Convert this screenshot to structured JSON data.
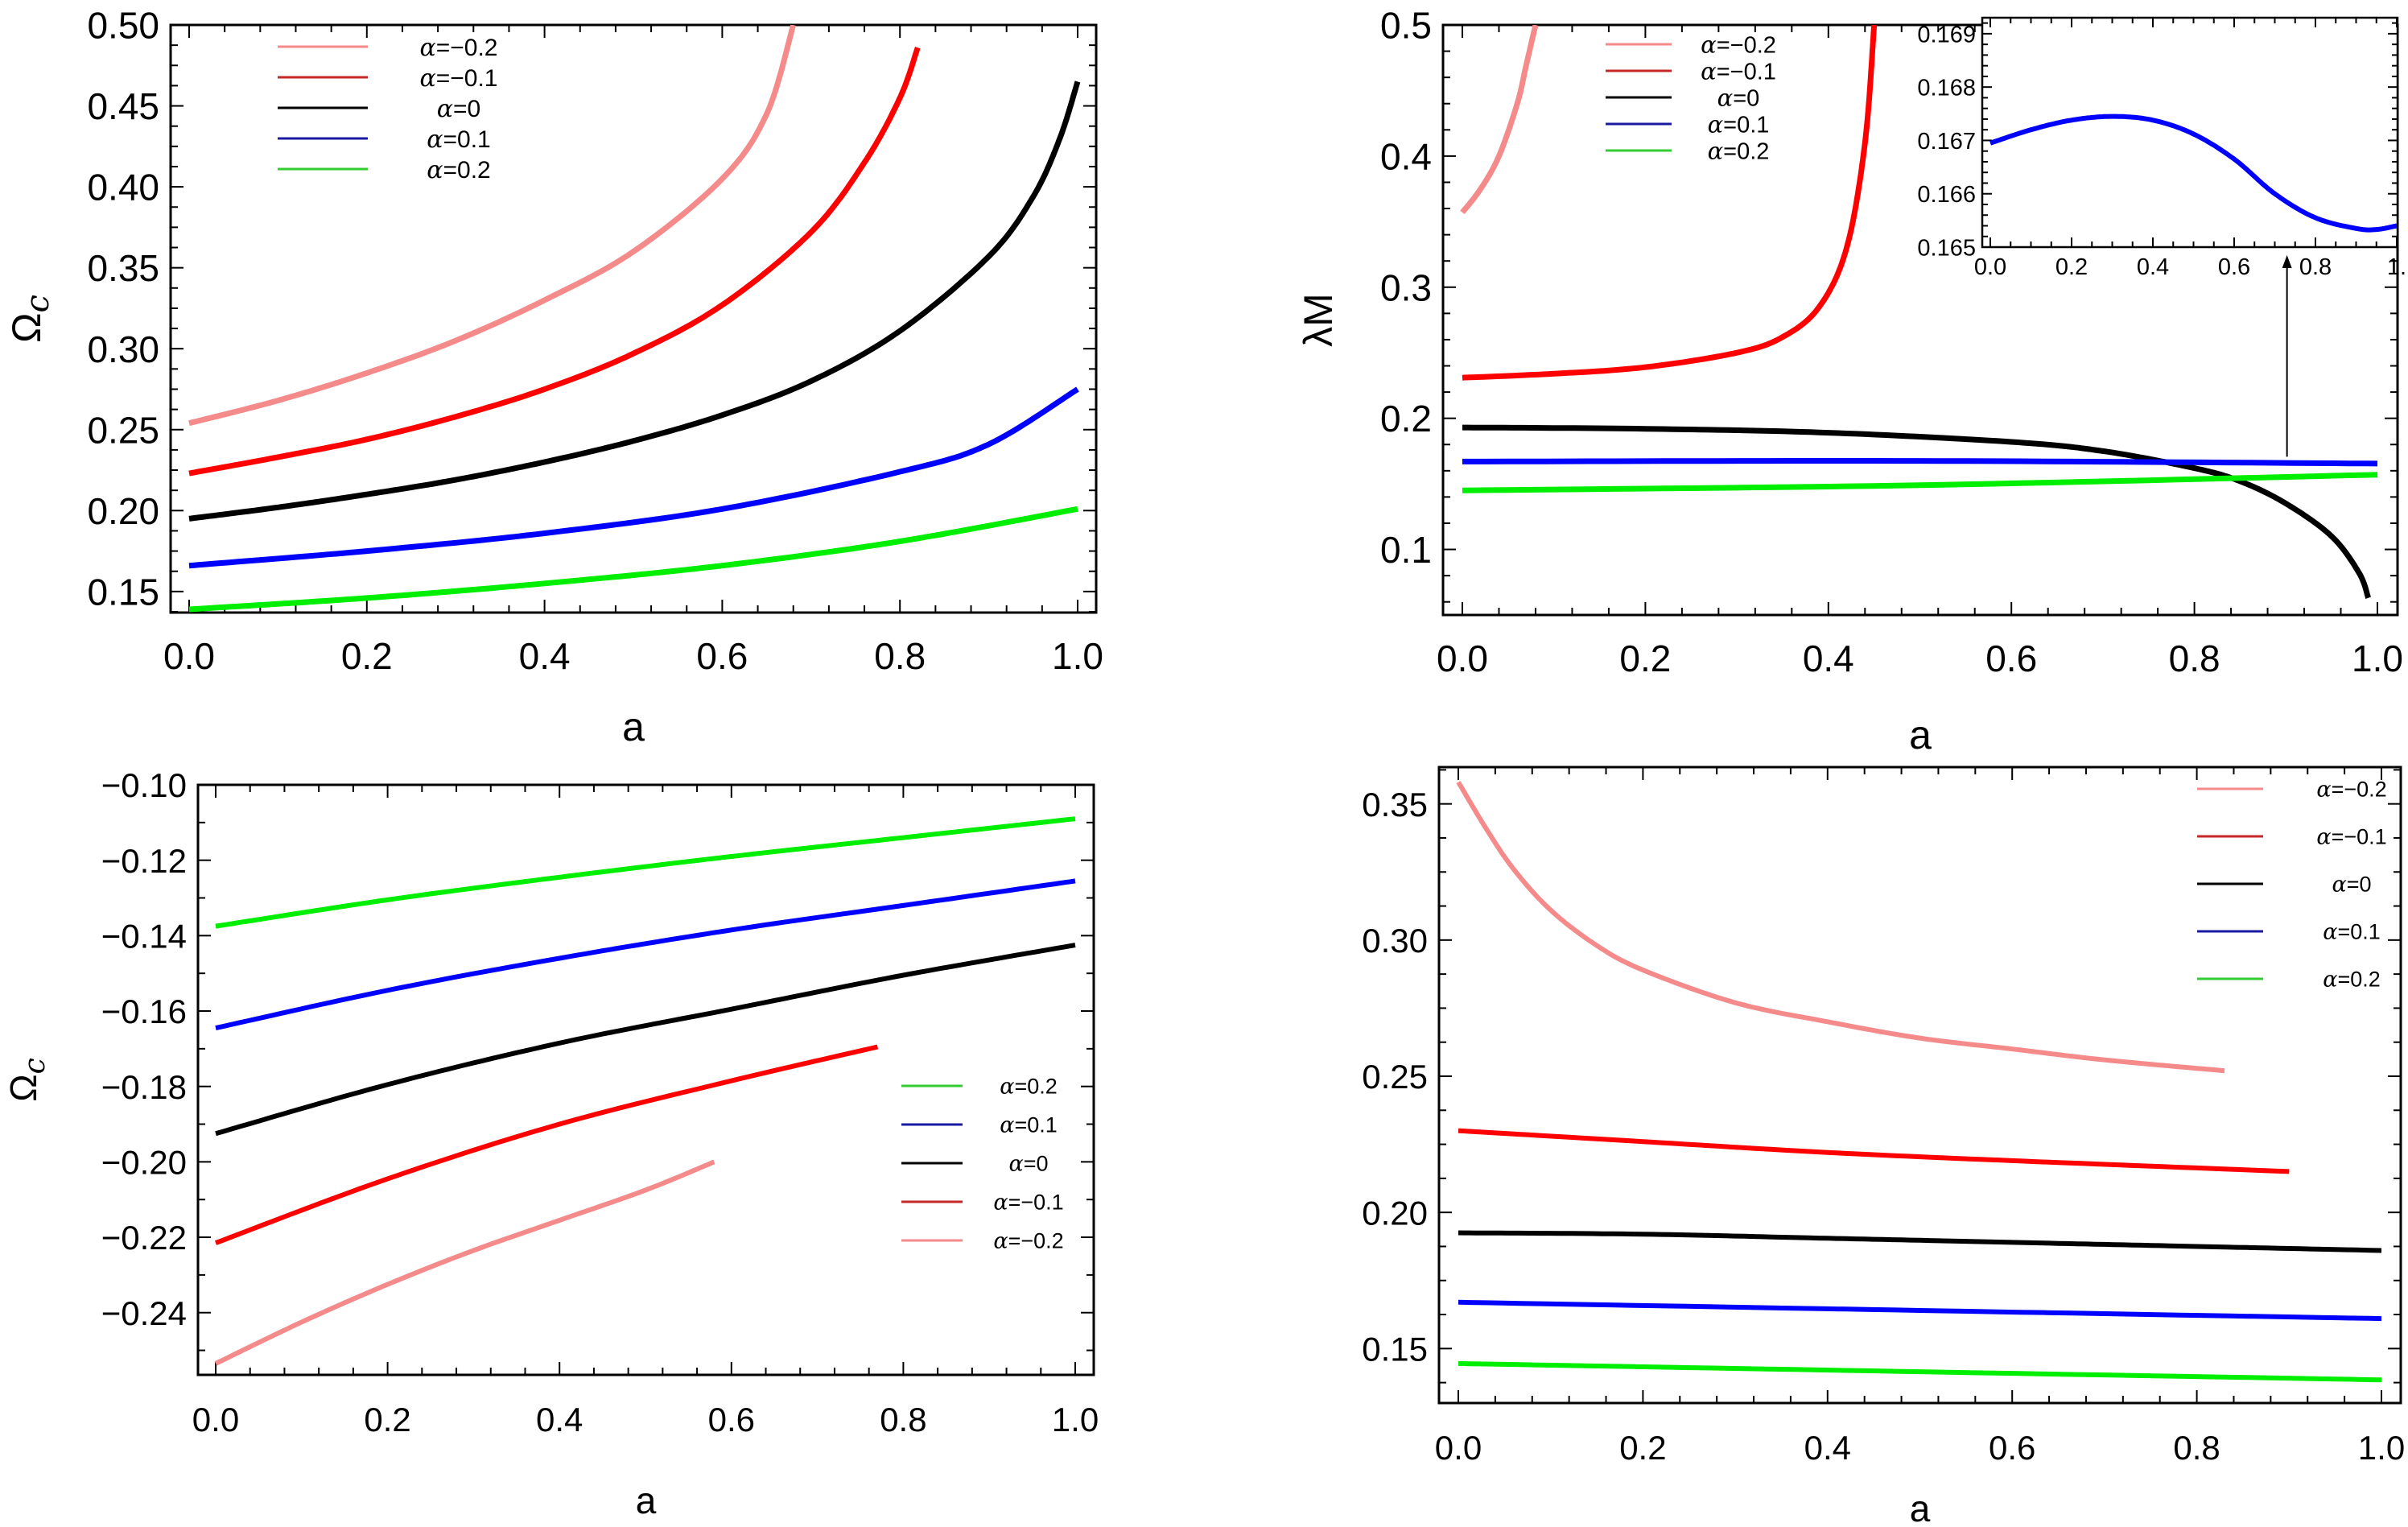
{
  "chart_data": [
    {
      "id": "top_left",
      "type": "line",
      "title": "",
      "xlabel": "a",
      "ylabel": "Ω_c",
      "ylabel_main": "Ω",
      "ylabel_sub": "c",
      "xlim": [
        0,
        1
      ],
      "ylim": [
        0.137,
        0.5
      ],
      "xticks": [
        0.0,
        0.2,
        0.4,
        0.6,
        0.8,
        1.0
      ],
      "xtick_labels": [
        "0.0",
        "0.2",
        "0.4",
        "0.6",
        "0.8",
        "1.0"
      ],
      "yticks": [
        0.15,
        0.2,
        0.25,
        0.3,
        0.35,
        0.4,
        0.45,
        0.5
      ],
      "ytick_labels": [
        "0.15",
        "0.20",
        "0.25",
        "0.30",
        "0.35",
        "0.40",
        "0.45",
        "0.50"
      ],
      "grid": false,
      "legend_position": "top-left",
      "series": [
        {
          "name": "α=-0.2",
          "color": "#f48a8a",
          "x": [
            0,
            0.1,
            0.2,
            0.3,
            0.4,
            0.5,
            0.6,
            0.65,
            0.68
          ],
          "y": [
            0.254,
            0.268,
            0.285,
            0.305,
            0.33,
            0.36,
            0.405,
            0.445,
            0.5
          ]
        },
        {
          "name": "α=-0.1",
          "color": "#ff0000",
          "x": [
            0,
            0.1,
            0.2,
            0.3,
            0.4,
            0.5,
            0.6,
            0.7,
            0.76,
            0.8,
            0.82
          ],
          "y": [
            0.223,
            0.233,
            0.244,
            0.258,
            0.275,
            0.297,
            0.327,
            0.372,
            0.415,
            0.455,
            0.486
          ]
        },
        {
          "name": "α=0",
          "color": "#000000",
          "x": [
            0,
            0.1,
            0.2,
            0.3,
            0.4,
            0.5,
            0.6,
            0.7,
            0.8,
            0.9,
            0.95,
            0.98,
            1.0
          ],
          "y": [
            0.195,
            0.202,
            0.21,
            0.219,
            0.23,
            0.243,
            0.259,
            0.28,
            0.311,
            0.357,
            0.394,
            0.43,
            0.465
          ]
        },
        {
          "name": "α=0.1",
          "color": "#0000ff",
          "x": [
            0,
            0.2,
            0.4,
            0.6,
            0.8,
            0.9,
            1.0
          ],
          "y": [
            0.166,
            0.175,
            0.186,
            0.201,
            0.224,
            0.241,
            0.275
          ]
        },
        {
          "name": "α=0.2",
          "color": "#00ee00",
          "x": [
            0,
            0.2,
            0.4,
            0.6,
            0.8,
            1.0
          ],
          "y": [
            0.139,
            0.146,
            0.155,
            0.166,
            0.181,
            0.201
          ]
        }
      ],
      "legend": [
        {
          "label": "α=-0.2",
          "color": "#f48a8a"
        },
        {
          "label": "α=-0.1",
          "color": "#c62828"
        },
        {
          "label": "α=0",
          "color": "#000000"
        },
        {
          "label": "α=0.1",
          "color": "#1a1aa0"
        },
        {
          "label": "α=0.2",
          "color": "#33cc33"
        }
      ]
    },
    {
      "id": "top_right",
      "type": "line",
      "title": "",
      "xlabel": "a",
      "ylabel": "λM",
      "xlim": [
        0,
        1
      ],
      "ylim": [
        0.05,
        0.5
      ],
      "xticks": [
        0.0,
        0.2,
        0.4,
        0.6,
        0.8,
        1.0
      ],
      "xtick_labels": [
        "0.0",
        "0.2",
        "0.4",
        "0.6",
        "0.8",
        "1.0"
      ],
      "yticks": [
        0.1,
        0.2,
        0.3,
        0.4,
        0.5
      ],
      "ytick_labels": [
        "0.1",
        "0.2",
        "0.3",
        "0.4",
        "0.5"
      ],
      "grid": false,
      "legend_position": "top-left",
      "series": [
        {
          "name": "α=-0.2",
          "color": "#f48a8a",
          "x": [
            0,
            0.02,
            0.04,
            0.06,
            0.07,
            0.08
          ],
          "y": [
            0.357,
            0.375,
            0.4,
            0.44,
            0.47,
            0.5
          ]
        },
        {
          "name": "α=-0.1",
          "color": "#ff0000",
          "x": [
            0,
            0.1,
            0.2,
            0.3,
            0.35,
            0.39,
            0.42,
            0.44,
            0.45
          ],
          "y": [
            0.231,
            0.234,
            0.239,
            0.25,
            0.262,
            0.285,
            0.33,
            0.41,
            0.5
          ]
        },
        {
          "name": "α=0",
          "color": "#000000",
          "x": [
            0,
            0.2,
            0.4,
            0.6,
            0.7,
            0.8,
            0.85,
            0.9,
            0.95,
            0.98,
            0.99
          ],
          "y": [
            0.193,
            0.192,
            0.189,
            0.182,
            0.175,
            0.162,
            0.152,
            0.135,
            0.11,
            0.082,
            0.063
          ]
        },
        {
          "name": "α=0.1",
          "color": "#0000ff",
          "x": [
            0,
            0.5,
            1.0
          ],
          "y": [
            0.167,
            0.1675,
            0.1655
          ]
        },
        {
          "name": "α=0.2",
          "color": "#00ee00",
          "x": [
            0,
            0.5,
            1.0
          ],
          "y": [
            0.145,
            0.149,
            0.157
          ]
        }
      ],
      "legend": [
        {
          "label": "α=-0.2",
          "color": "#f48a8a"
        },
        {
          "label": "α=-0.1",
          "color": "#c62828"
        },
        {
          "label": "α=0",
          "color": "#000000"
        },
        {
          "label": "α=0.1",
          "color": "#1a1aa0"
        },
        {
          "label": "α=0.2",
          "color": "#33cc33"
        }
      ],
      "inset": {
        "type": "line",
        "xlim": [
          0,
          1
        ],
        "ylim": [
          0.165,
          0.1693
        ],
        "xticks": [
          0.0,
          0.2,
          0.4,
          0.6,
          0.8,
          1.0
        ],
        "xtick_labels": [
          "0.0",
          "0.2",
          "0.4",
          "0.6",
          "0.8",
          "1."
        ],
        "yticks": [
          0.165,
          0.166,
          0.167,
          0.168,
          0.169
        ],
        "ytick_labels": [
          "0.165",
          "0.166",
          "0.167",
          "0.168",
          "0.169"
        ],
        "series": [
          {
            "name": "α=0.1",
            "color": "#0000ff",
            "x": [
              0,
              0.1,
              0.2,
              0.3,
              0.4,
              0.5,
              0.6,
              0.7,
              0.8,
              0.9,
              0.95,
              1.0
            ],
            "y": [
              0.16695,
              0.1672,
              0.16738,
              0.16745,
              0.16738,
              0.16712,
              0.16665,
              0.166,
              0.16555,
              0.16535,
              0.16533,
              0.1654
            ]
          }
        ],
        "arrow_from": {
          "x": 0.9,
          "y": 0.167
        },
        "arrow_to_inset_x": 0.73
      }
    },
    {
      "id": "bottom_left",
      "type": "line",
      "title": "",
      "xlabel": "a",
      "ylabel": "Ω_c",
      "ylabel_main": "Ω",
      "ylabel_sub": "c",
      "xlim": [
        0,
        1
      ],
      "ylim": [
        -0.2565,
        -0.1
      ],
      "xticks": [
        0.0,
        0.2,
        0.4,
        0.6,
        0.8,
        1.0
      ],
      "xtick_labels": [
        "0.0",
        "0.2",
        "0.4",
        "0.6",
        "0.8",
        "1.0"
      ],
      "yticks": [
        -0.24,
        -0.22,
        -0.2,
        -0.18,
        -0.16,
        -0.14,
        -0.12,
        -0.1
      ],
      "ytick_labels": [
        "-0.24",
        "-0.22",
        "-0.20",
        "-0.18",
        "-0.16",
        "-0.14",
        "-0.12",
        "-0.10"
      ],
      "grid": false,
      "legend_position": "center-right",
      "series": [
        {
          "name": "α=0.2",
          "color": "#00ee00",
          "x": [
            0,
            0.2,
            0.4,
            0.6,
            0.8,
            1.0
          ],
          "y": [
            -0.1375,
            -0.1305,
            -0.1245,
            -0.119,
            -0.114,
            -0.109
          ]
        },
        {
          "name": "α=0.1",
          "color": "#0000ff",
          "x": [
            0,
            0.2,
            0.4,
            0.6,
            0.8,
            1.0
          ],
          "y": [
            -0.1645,
            -0.1545,
            -0.146,
            -0.1385,
            -0.132,
            -0.1255
          ]
        },
        {
          "name": "α=0",
          "color": "#000000",
          "x": [
            0,
            0.2,
            0.4,
            0.6,
            0.8,
            1.0
          ],
          "y": [
            -0.1925,
            -0.1795,
            -0.1685,
            -0.1595,
            -0.1505,
            -0.1425
          ]
        },
        {
          "name": "α=-0.1",
          "color": "#ff0000",
          "x": [
            0,
            0.2,
            0.4,
            0.6,
            0.77
          ],
          "y": [
            -0.2215,
            -0.2045,
            -0.19,
            -0.1785,
            -0.1695
          ]
        },
        {
          "name": "α=-0.2",
          "color": "#f48a8a",
          "x": [
            0,
            0.1,
            0.2,
            0.3,
            0.4,
            0.5,
            0.58
          ],
          "y": [
            -0.2535,
            -0.2425,
            -0.2325,
            -0.2235,
            -0.2155,
            -0.2075,
            -0.2
          ]
        }
      ],
      "legend": [
        {
          "label": "α=0.2",
          "color": "#33cc33"
        },
        {
          "label": "α=0.1",
          "color": "#1a1aa0"
        },
        {
          "label": "α=0",
          "color": "#000000"
        },
        {
          "label": "α=-0.1",
          "color": "#c62828"
        },
        {
          "label": "α=-0.2",
          "color": "#f48a8a"
        }
      ]
    },
    {
      "id": "bottom_right",
      "type": "line",
      "title": "",
      "xlabel": "a",
      "ylabel": "",
      "xlim": [
        0,
        1
      ],
      "ylim": [
        0.13,
        0.3635
      ],
      "xticks": [
        0.0,
        0.2,
        0.4,
        0.6,
        0.8,
        1.0
      ],
      "xtick_labels": [
        "0.0",
        "0.2",
        "0.4",
        "0.6",
        "0.8",
        "1.0"
      ],
      "yticks": [
        0.15,
        0.2,
        0.25,
        0.3,
        0.35
      ],
      "ytick_labels": [
        "0.15",
        "0.20",
        "0.25",
        "0.30",
        "0.35"
      ],
      "grid": false,
      "legend_position": "top-right",
      "series": [
        {
          "name": "α=-0.2",
          "color": "#f48a8a",
          "x": [
            0,
            0.03,
            0.06,
            0.1,
            0.15,
            0.2,
            0.3,
            0.4,
            0.5,
            0.6,
            0.7,
            0.83
          ],
          "y": [
            0.358,
            0.341,
            0.326,
            0.311,
            0.298,
            0.289,
            0.277,
            0.27,
            0.264,
            0.26,
            0.256,
            0.252
          ]
        },
        {
          "name": "α=-0.1",
          "color": "#ff0000",
          "x": [
            0,
            0.2,
            0.4,
            0.6,
            0.9
          ],
          "y": [
            0.23,
            0.226,
            0.222,
            0.219,
            0.215
          ]
        },
        {
          "name": "α=0",
          "color": "#000000",
          "x": [
            0,
            0.2,
            0.4,
            0.6,
            0.8,
            1.0
          ],
          "y": [
            0.1925,
            0.192,
            0.1905,
            0.189,
            0.1875,
            0.186
          ]
        },
        {
          "name": "α=0.1",
          "color": "#0000ff",
          "x": [
            0,
            0.5,
            1.0
          ],
          "y": [
            0.167,
            0.164,
            0.161
          ]
        },
        {
          "name": "α=0.2",
          "color": "#00ee00",
          "x": [
            0,
            0.5,
            1.0
          ],
          "y": [
            0.1445,
            0.1415,
            0.1385
          ]
        }
      ],
      "legend": [
        {
          "label": "α=-0.2",
          "color": "#f48a8a"
        },
        {
          "label": "α=-0.1",
          "color": "#c62828"
        },
        {
          "label": "α=0",
          "color": "#000000"
        },
        {
          "label": "α=0.1",
          "color": "#1a1aa0"
        },
        {
          "label": "α=0.2",
          "color": "#33cc33"
        }
      ]
    }
  ]
}
